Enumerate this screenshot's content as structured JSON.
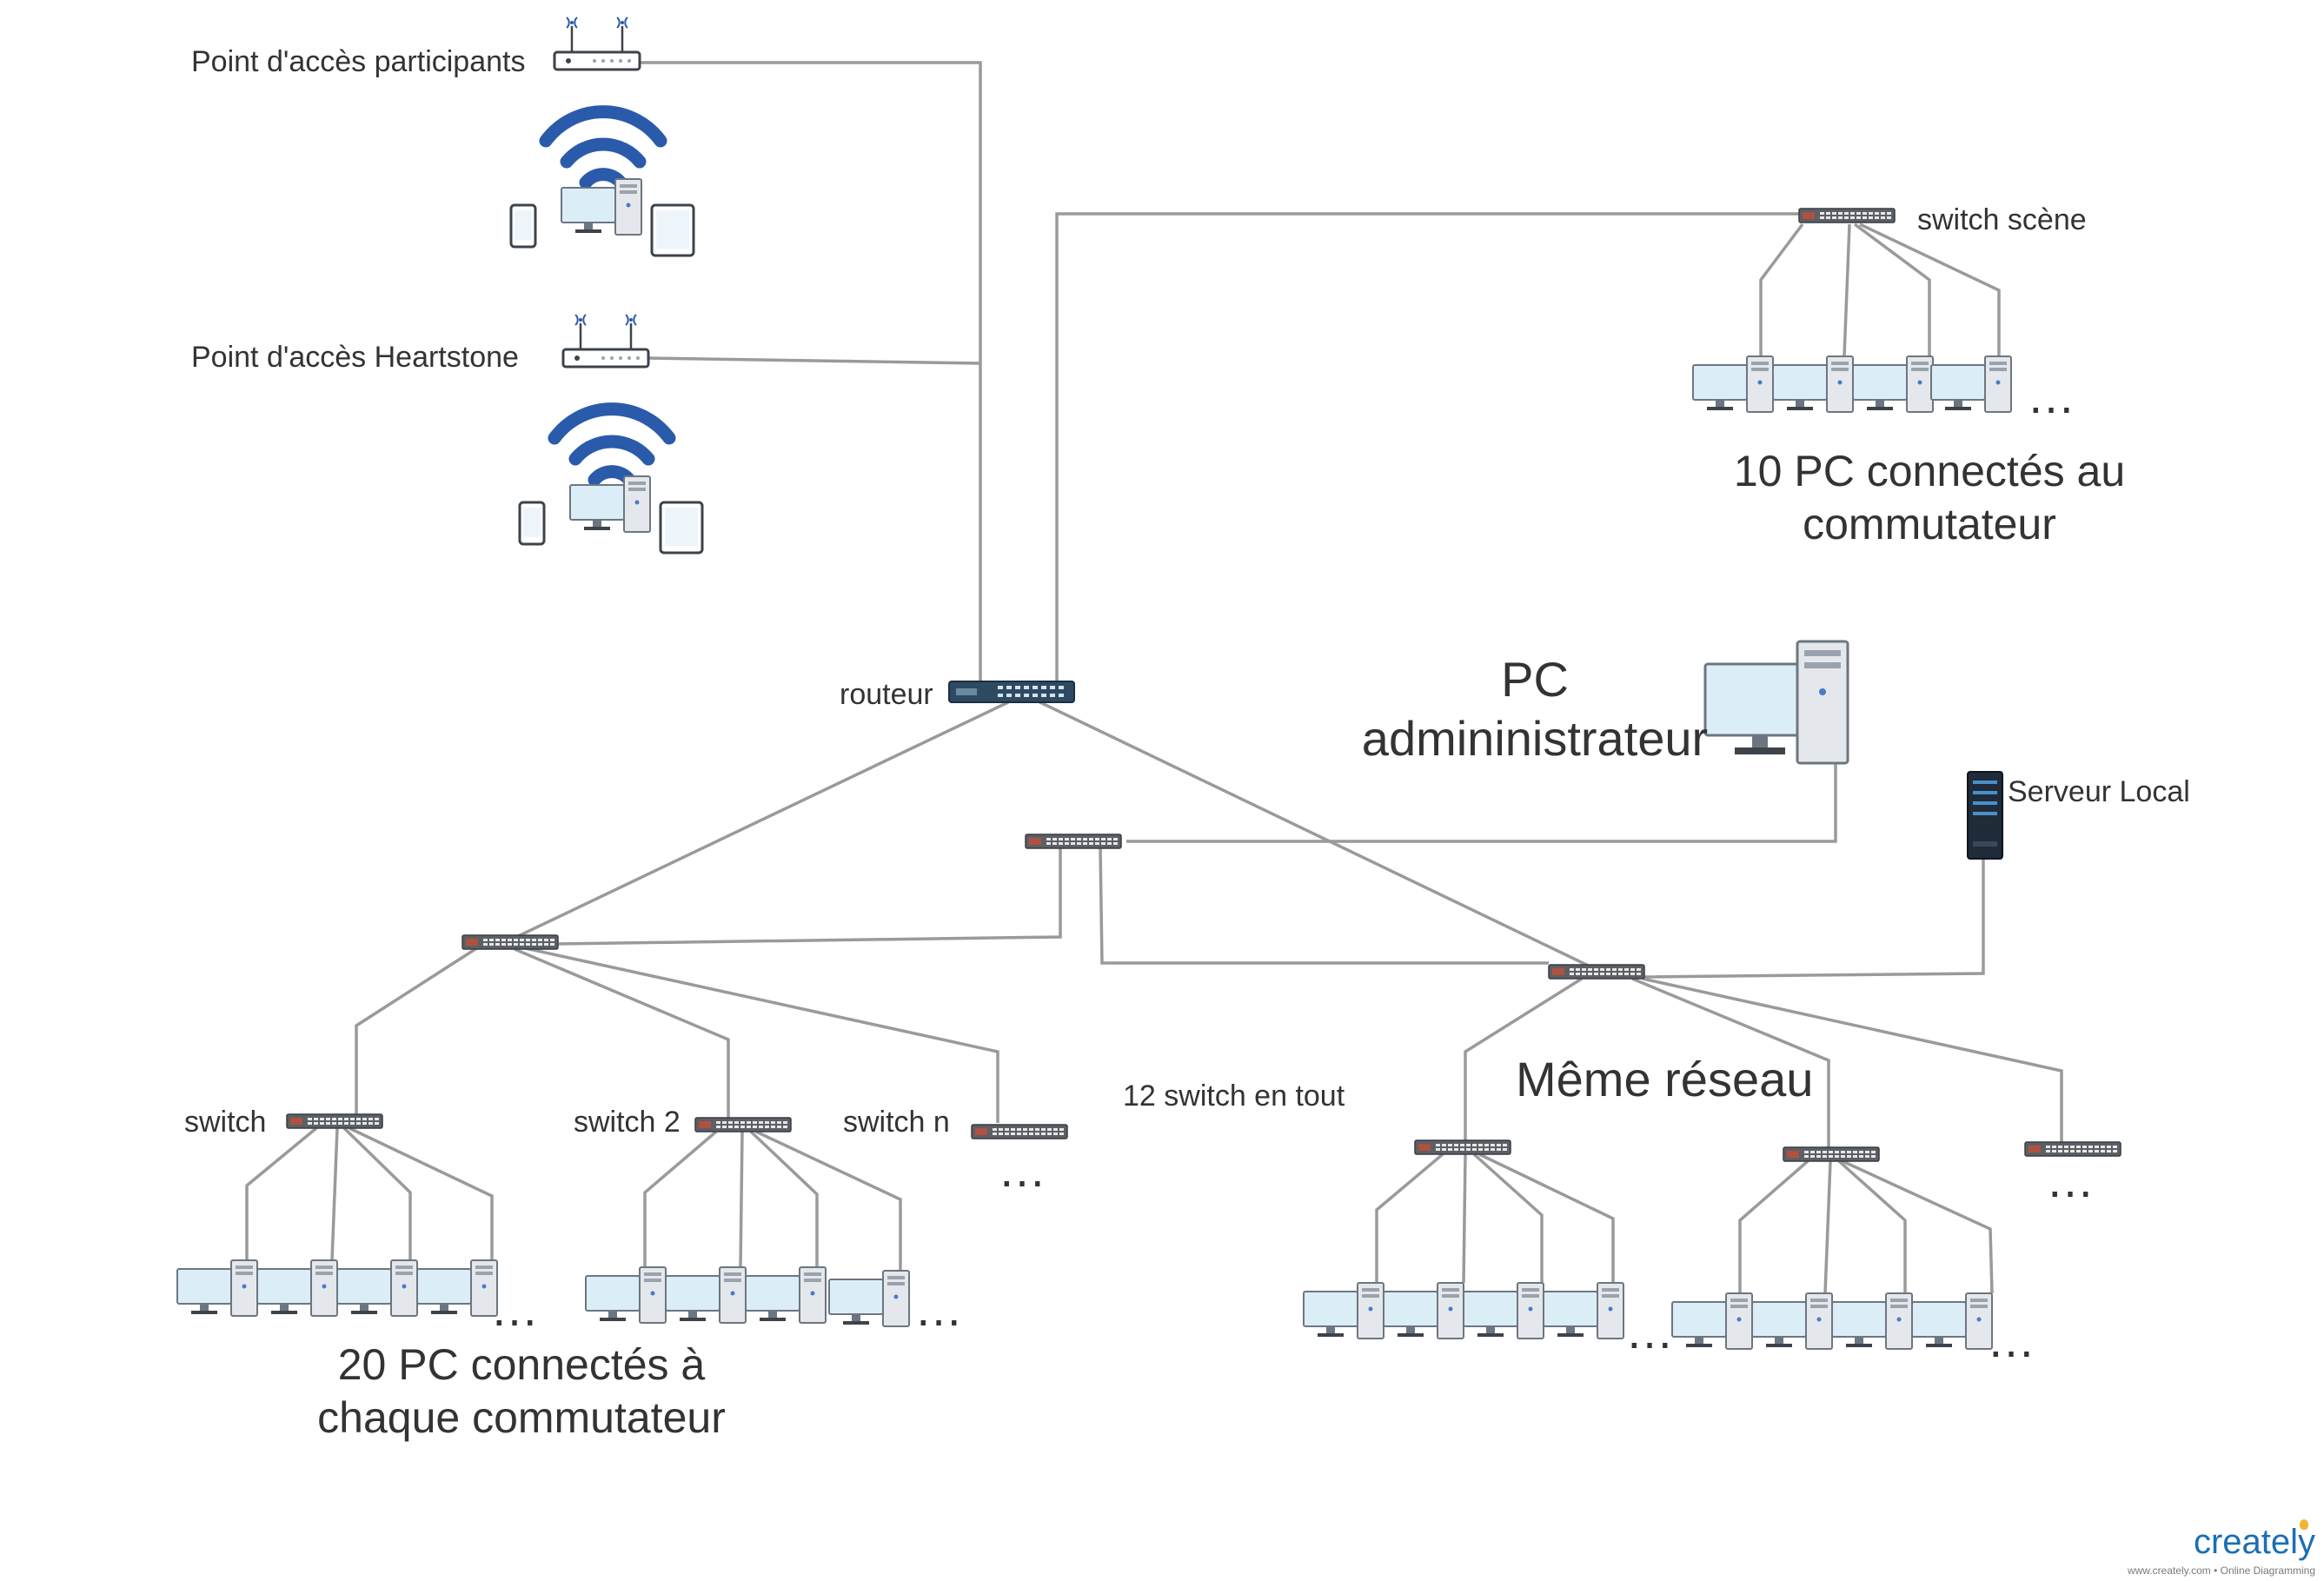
{
  "labels": {
    "ap_participants": "Point d'accès participants",
    "ap_heartstone": "Point d'accès Heartstone",
    "router": "routeur",
    "switch_scene": "switch scène",
    "scene_pcs": "10 PC connectés au commutateur",
    "admin_pc": "PC admininistrateur",
    "server": "Serveur Local",
    "switch_1": "switch",
    "switch_2": "switch 2",
    "switch_n": "switch n",
    "switch_total": "12 switch en tout",
    "same_network": "Même réseau",
    "pcs_per_switch": "20 PC connectés à chaque commutateur",
    "ellipsis": "…"
  },
  "logo": {
    "word": "creately",
    "tagline": "www.creately.com • Online Diagramming"
  },
  "colors": {
    "link": "#9a9a9a",
    "wifi": "#2a5bab",
    "router": "#2e4a63",
    "switch_body": "#5b5f66",
    "monitor_screen": "#dbeef8",
    "tower": "#e4e8ec",
    "server": "#1f2b38",
    "logo": "#1b6fb5"
  },
  "icons": [
    "access-point-icon",
    "wifi-icon",
    "smartphone-icon",
    "desktop-pc-icon",
    "tablet-icon",
    "router-icon",
    "switch-icon",
    "server-icon"
  ]
}
